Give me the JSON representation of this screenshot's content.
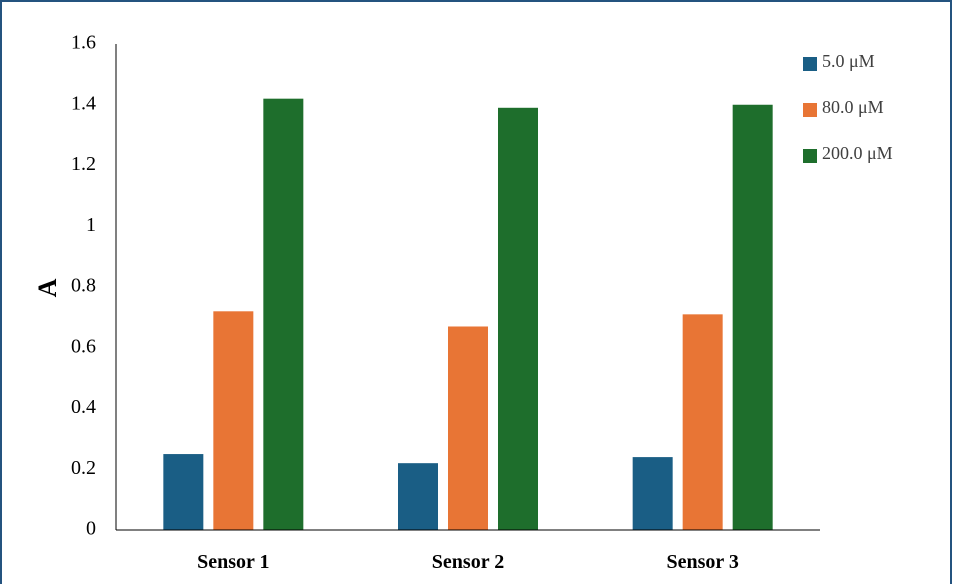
{
  "chart_data": {
    "type": "bar",
    "title": "",
    "xlabel": "",
    "ylabel": "A",
    "ylim": [
      0,
      1.6
    ],
    "yticks": [
      "0",
      "0.2",
      "0.4",
      "0.6",
      "0.8",
      "1",
      "1.2",
      "1.4",
      "1.6"
    ],
    "categories": [
      "Sensor 1",
      "Sensor 2",
      "Sensor 3"
    ],
    "series": [
      {
        "name": "5.0 μM",
        "color": "#1a5e85",
        "values": [
          0.25,
          0.22,
          0.24
        ]
      },
      {
        "name": "80.0 μM",
        "color": "#e87535",
        "values": [
          0.72,
          0.67,
          0.71
        ]
      },
      {
        "name": "200.0 μM",
        "color": "#1e6e2c",
        "values": [
          1.42,
          1.39,
          1.4
        ]
      }
    ],
    "grid": false,
    "legend_position": "top-right"
  }
}
